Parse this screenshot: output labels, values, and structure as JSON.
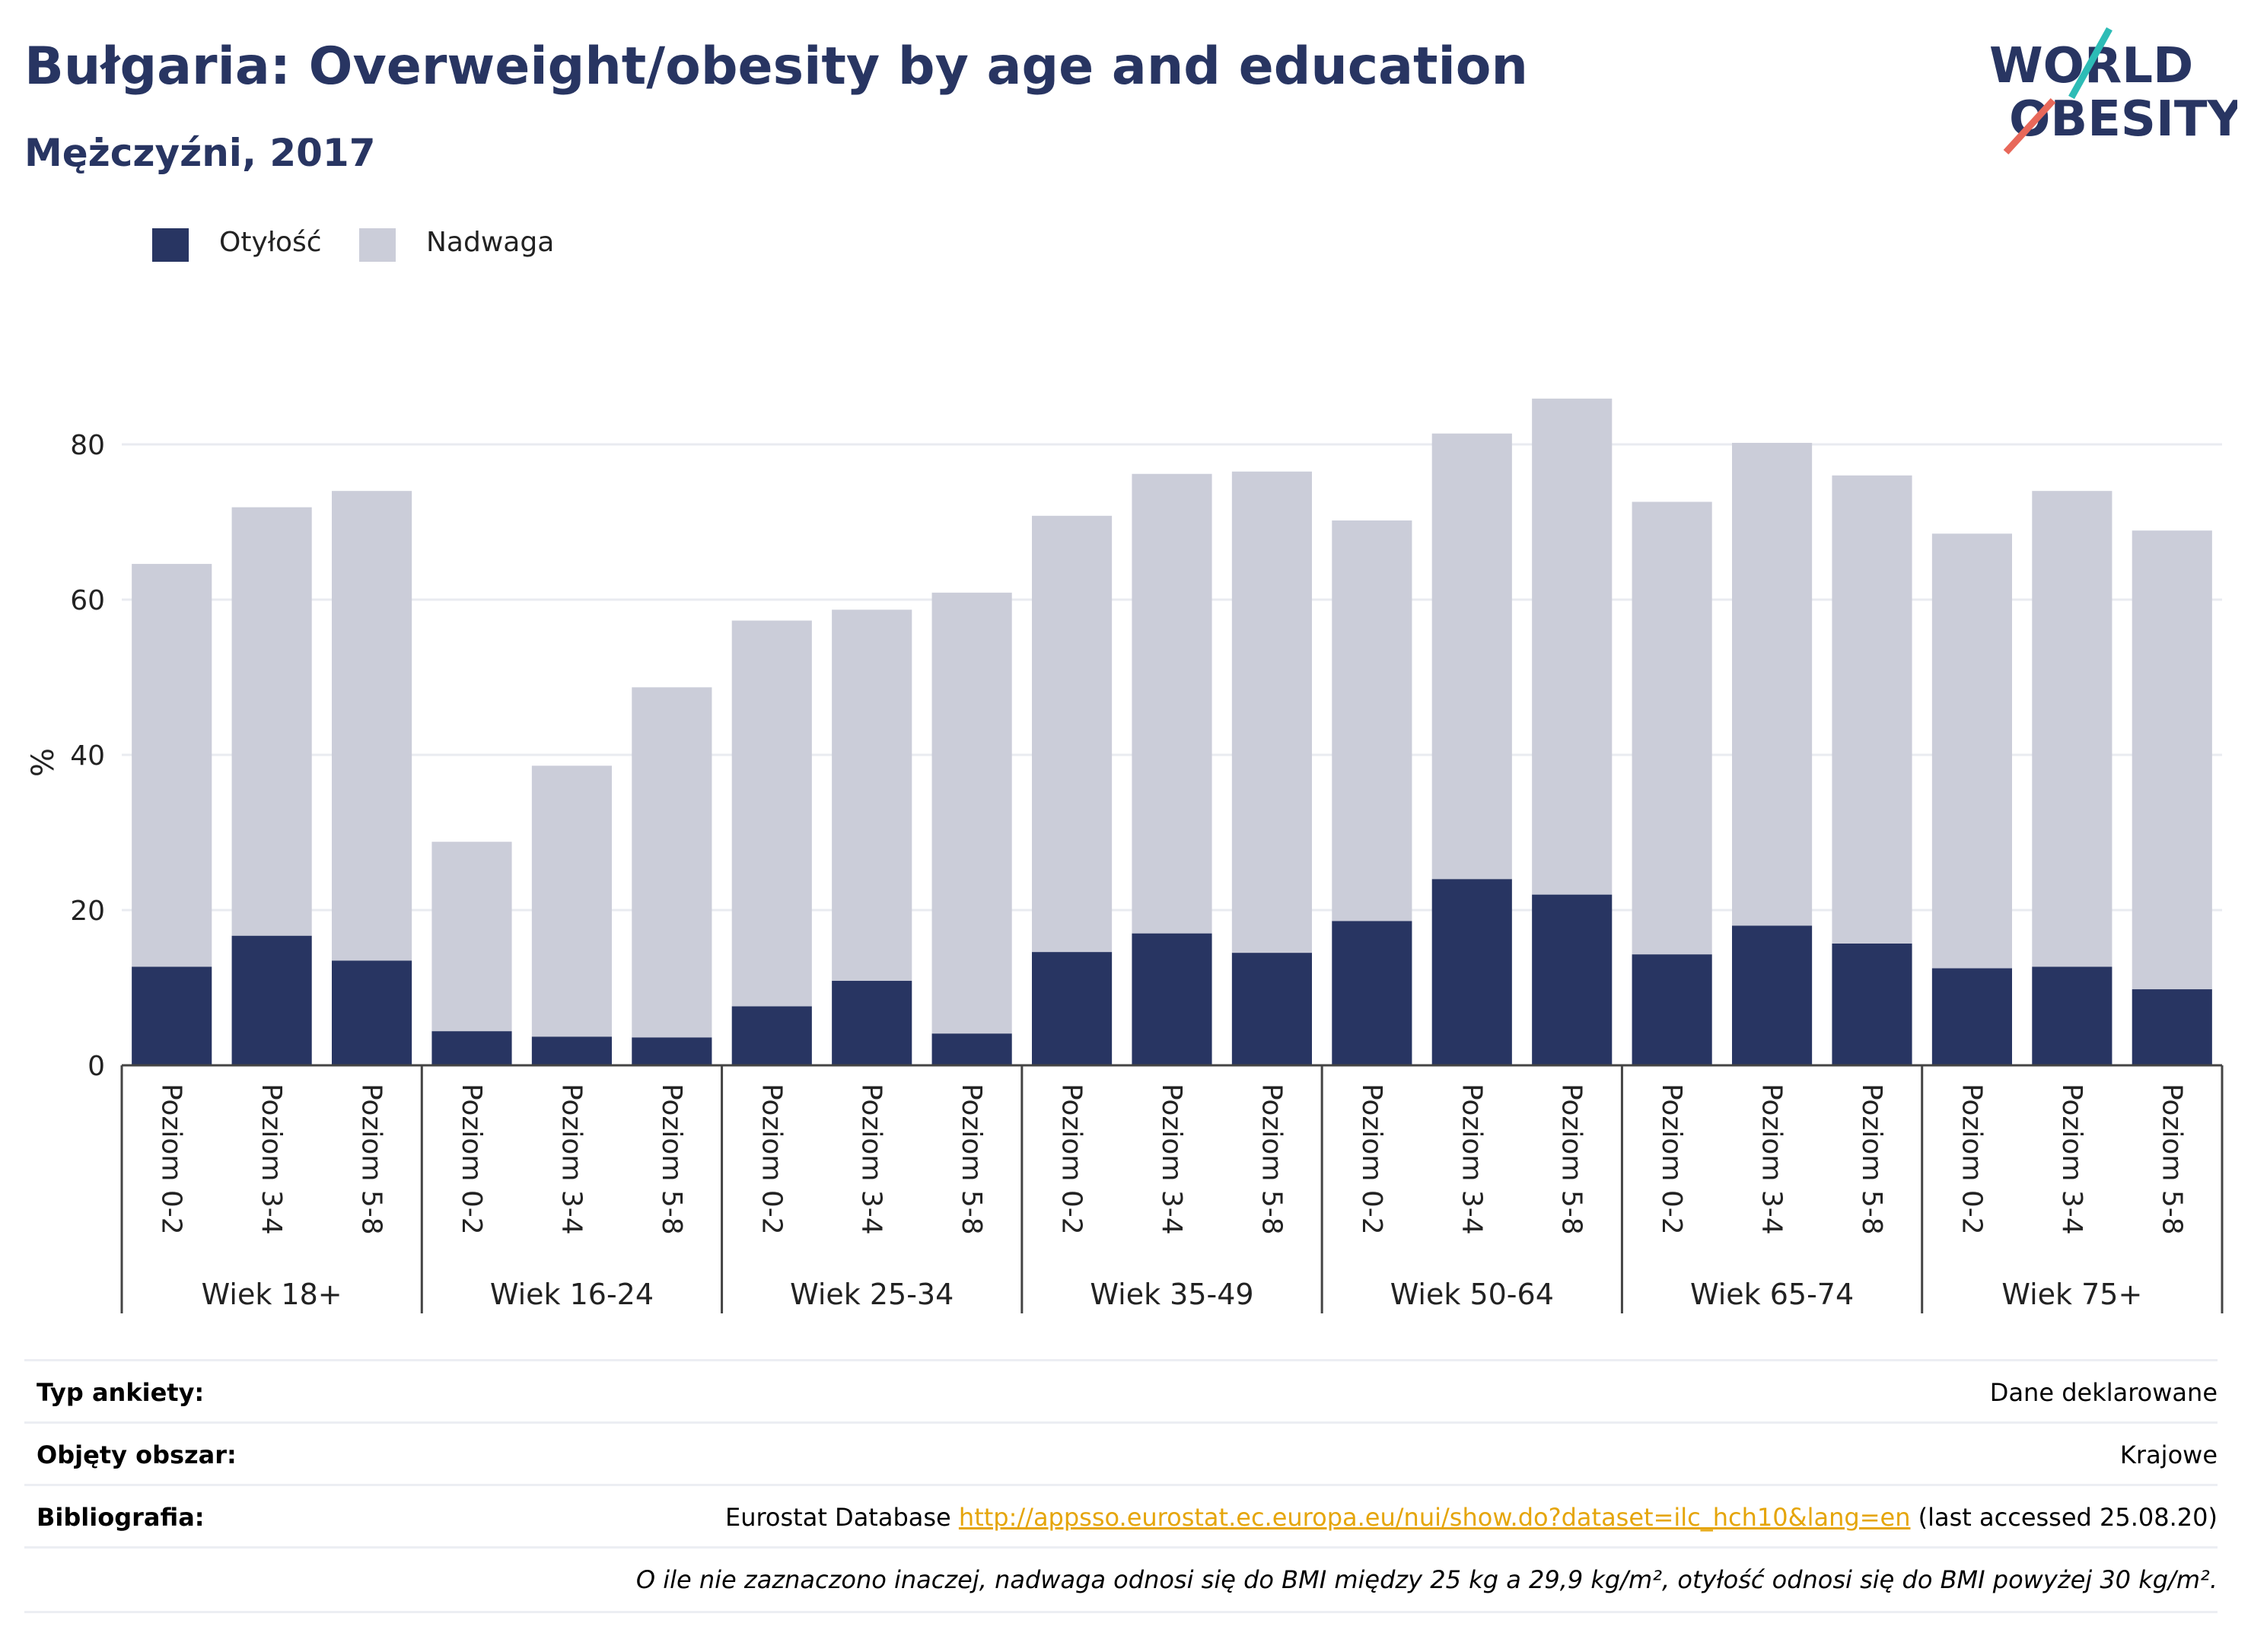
{
  "header": {
    "title": "Bułgaria: Overweight/obesity by age and education",
    "subtitle": "Mężczyźni, 2017"
  },
  "logo": {
    "line1": "WORLD",
    "line2": "OBESITY",
    "icon": "world-obesity-logo"
  },
  "colors": {
    "obesity": "#283562",
    "overweight": "#cbcdd9",
    "accent_teal": "#2dbcb6",
    "accent_red": "#e8685a"
  },
  "legend": {
    "position": "top-left",
    "items": [
      {
        "label": "Otyłość",
        "color": "#283562"
      },
      {
        "label": "Nadwaga",
        "color": "#cbcdd9"
      }
    ]
  },
  "chart_data": {
    "type": "bar",
    "stacked": true,
    "ylabel": "%",
    "ylim": [
      0,
      90
    ],
    "yticks": [
      0,
      20,
      40,
      60,
      80
    ],
    "grid": true,
    "groups": [
      {
        "label": "Wiek 18+",
        "categories": [
          "Poziom 0-2",
          "Poziom 3-4",
          "Poziom 5-8"
        ]
      },
      {
        "label": "Wiek 16-24",
        "categories": [
          "Poziom 0-2",
          "Poziom 3-4",
          "Poziom 5-8"
        ]
      },
      {
        "label": "Wiek 25-34",
        "categories": [
          "Poziom 0-2",
          "Poziom 3-4",
          "Poziom 5-8"
        ]
      },
      {
        "label": "Wiek 35-49",
        "categories": [
          "Poziom 0-2",
          "Poziom 3-4",
          "Poziom 5-8"
        ]
      },
      {
        "label": "Wiek 50-64",
        "categories": [
          "Poziom 0-2",
          "Poziom 3-4",
          "Poziom 5-8"
        ]
      },
      {
        "label": "Wiek 65-74",
        "categories": [
          "Poziom 0-2",
          "Poziom 3-4",
          "Poziom 5-8"
        ]
      },
      {
        "label": "Wiek 75+",
        "categories": [
          "Poziom 0-2",
          "Poziom 3-4",
          "Poziom 5-8"
        ]
      }
    ],
    "series": [
      {
        "name": "Otyłość",
        "color": "#283562",
        "values": [
          12.7,
          16.7,
          13.5,
          4.4,
          3.7,
          3.6,
          7.6,
          10.9,
          4.1,
          14.6,
          17.0,
          14.5,
          18.6,
          24.0,
          22.0,
          14.3,
          18.0,
          15.7,
          12.5,
          12.7,
          9.8
        ]
      },
      {
        "name": "Nadwaga",
        "color": "#cbcdd9",
        "values": [
          51.9,
          55.2,
          60.5,
          24.4,
          34.9,
          45.1,
          49.7,
          47.8,
          56.8,
          56.2,
          59.2,
          62.0,
          51.6,
          57.4,
          63.9,
          58.3,
          62.2,
          60.3,
          56.0,
          61.3,
          59.1
        ]
      }
    ]
  },
  "info": {
    "survey_type_key": "Typ ankiety:",
    "survey_type_val": "Dane deklarowane",
    "area_key": "Objęty obszar:",
    "area_val": "Krajowe",
    "biblio_key": "Bibliografia:",
    "biblio_prefix": "Eurostat Database ",
    "biblio_link": "http://appsso.eurostat.ec.europa.eu/nui/show.do?dataset=ilc_hch10&lang=en",
    "biblio_suffix": " (last accessed 25.08.20)",
    "note": "O ile nie zaznaczono inaczej, nadwaga odnosi się do BMI między 25 kg a 29,9 kg/m², otyłość odnosi się do BMI powyżej 30 kg/m²."
  }
}
